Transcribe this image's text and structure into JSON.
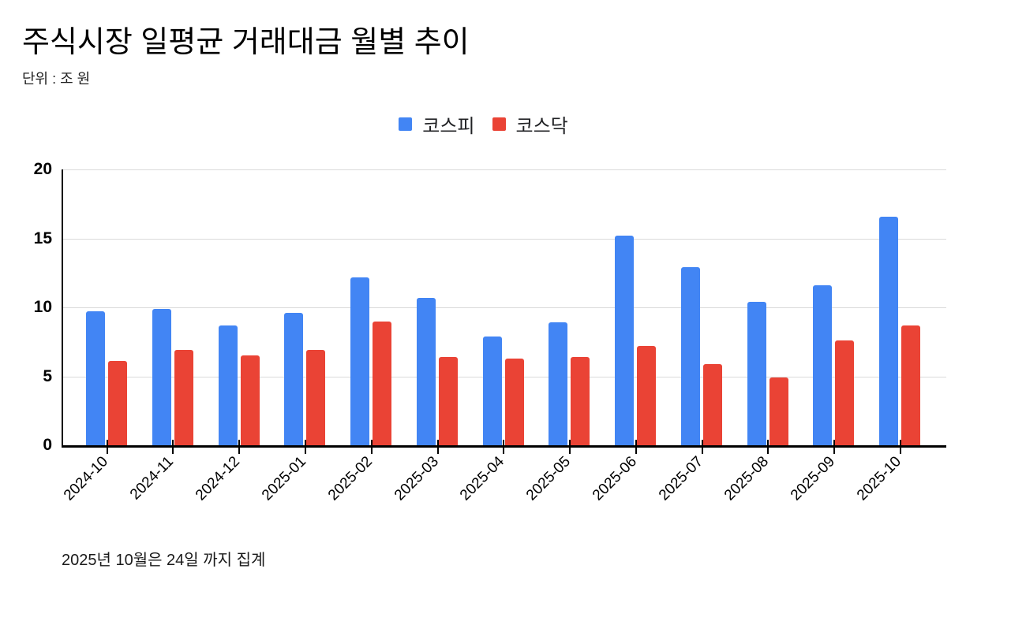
{
  "header": {
    "title": "주식시장 일평균 거래대금 월별 추이",
    "unit_label": "단위 : 조 원"
  },
  "footer": {
    "note": "2025년 10월은 24일 까지 집계"
  },
  "colors": {
    "kospi": "#4285F4",
    "kosdaq": "#EA4335",
    "axis": "#000000",
    "gridline": "#DADADA",
    "text": "#000000"
  },
  "chart_data": {
    "type": "bar",
    "title": "주식시장 일평균 거래대금 월별 추이",
    "unit": "조 원",
    "categories": [
      "2024-10",
      "2024-11",
      "2024-12",
      "2025-01",
      "2025-02",
      "2025-03",
      "2025-04",
      "2025-05",
      "2025-06",
      "2025-07",
      "2025-08",
      "2025-09",
      "2025-10"
    ],
    "series": [
      {
        "key": "kospi",
        "name": "코스피",
        "color": "#4285F4",
        "values": [
          9.7,
          9.9,
          8.7,
          9.6,
          12.2,
          10.7,
          7.9,
          8.9,
          15.2,
          12.9,
          10.4,
          11.6,
          16.6
        ]
      },
      {
        "key": "kosdaq",
        "name": "코스닥",
        "color": "#EA4335",
        "values": [
          6.1,
          6.9,
          6.5,
          6.9,
          9.0,
          6.4,
          6.3,
          6.4,
          7.2,
          5.9,
          4.9,
          7.6,
          8.7
        ]
      }
    ],
    "xlabel": "",
    "ylabel": "",
    "ylim": [
      0,
      20
    ],
    "yticks": [
      0,
      5,
      10,
      15,
      20
    ],
    "grid": true,
    "legend_position": "top",
    "footnote": "2025년 10월은 24일 까지 집계"
  }
}
